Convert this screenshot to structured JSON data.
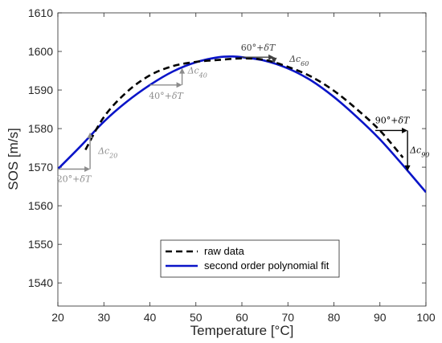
{
  "chart_data": {
    "type": "line",
    "xlabel": "Temperature [°C]",
    "ylabel": "SOS [m/s]",
    "xlim": [
      20,
      100
    ],
    "ylim": [
      1534,
      1610
    ],
    "xticks": [
      20,
      30,
      40,
      50,
      60,
      70,
      80,
      90,
      100
    ],
    "yticks": [
      1540,
      1550,
      1560,
      1570,
      1580,
      1590,
      1600,
      1610
    ],
    "grid": false,
    "legend_position": "bottom-center",
    "series": [
      {
        "name": "raw data",
        "style": "dashed",
        "color": "#000000",
        "x": [
          26,
          30,
          35,
          40,
          45,
          50,
          55,
          60,
          65,
          70,
          75,
          80,
          85,
          90,
          95
        ],
        "y": [
          1574.5,
          1583.0,
          1589.5,
          1593.8,
          1596.2,
          1597.3,
          1597.8,
          1598.2,
          1597.8,
          1596.0,
          1593.5,
          1589.8,
          1585.0,
          1579.5,
          1572.5
        ]
      },
      {
        "name": "second order polynomial fit",
        "style": "solid",
        "color": "#0a14c8",
        "x": [
          20,
          25,
          30,
          35,
          40,
          45,
          50,
          55,
          58,
          60,
          65,
          70,
          75,
          80,
          85,
          90,
          95,
          100
        ],
        "y": [
          1569.5,
          1575.5,
          1581.8,
          1587.0,
          1591.3,
          1594.8,
          1597.2,
          1598.5,
          1598.7,
          1598.5,
          1597.6,
          1595.6,
          1592.5,
          1588.2,
          1583.0,
          1577.2,
          1570.5,
          1563.5
        ]
      }
    ],
    "annotations": [
      {
        "temp": "20°+",
        "delta": "δT",
        "dc": "Δc",
        "sub": "20",
        "color": "#8c8c8c",
        "x0": 20,
        "x1": 27,
        "y_start": 1569.5,
        "y_end": 1579.0
      },
      {
        "temp": "40°+",
        "delta": "δT",
        "dc": "Δc",
        "sub": "40",
        "color": "#8c8c8c",
        "x0": 40,
        "x1": 47,
        "y_start": 1591.3,
        "y_end": 1595.7
      },
      {
        "temp": "60°+",
        "delta": "δT",
        "dc": "Δc",
        "sub": "60",
        "color": "#404040",
        "x0": 60,
        "x1": 67,
        "y_start": 1598.5,
        "y_end": 1596.9
      },
      {
        "temp": "90°+",
        "delta": "δT",
        "dc": "Δc",
        "sub": "90",
        "color": "#000000",
        "x0": 89,
        "x1": 96,
        "y_start": 1579.5,
        "y_end": 1569.0
      }
    ]
  }
}
